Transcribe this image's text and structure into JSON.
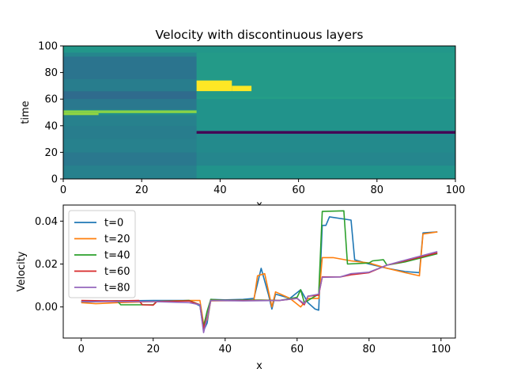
{
  "chart_data": [
    {
      "type": "heatmap",
      "title": "Velocity with discontinuous layers",
      "xlabel": "x",
      "ylabel": "time",
      "xlim": [
        0,
        100
      ],
      "ylim": [
        0,
        100
      ],
      "xticks": [
        "0",
        "20",
        "40",
        "60",
        "80",
        "100"
      ],
      "yticks": [
        "0",
        "20",
        "40",
        "60",
        "80",
        "100"
      ],
      "colormap": "viridis",
      "color_range": [
        -0.012,
        0.045
      ],
      "regions": [
        {
          "x": [
            0,
            100
          ],
          "t": [
            0,
            100
          ],
          "value": 0.016
        },
        {
          "x": [
            0,
            34
          ],
          "t": [
            0,
            10
          ],
          "value": 0.013
        },
        {
          "x": [
            0,
            34
          ],
          "t": [
            10,
            20
          ],
          "value": 0.011
        },
        {
          "x": [
            0,
            34
          ],
          "t": [
            20,
            30
          ],
          "value": 0.013
        },
        {
          "x": [
            0,
            34
          ],
          "t": [
            30,
            40
          ],
          "value": 0.012
        },
        {
          "x": [
            0,
            34
          ],
          "t": [
            40,
            48
          ],
          "value": 0.013
        },
        {
          "x": [
            0,
            34
          ],
          "t": [
            52,
            60
          ],
          "value": 0.011
        },
        {
          "x": [
            0,
            34
          ],
          "t": [
            60,
            66
          ],
          "value": 0.008
        },
        {
          "x": [
            0,
            34
          ],
          "t": [
            66,
            75
          ],
          "value": 0.012
        },
        {
          "x": [
            0,
            34
          ],
          "t": [
            75,
            92
          ],
          "value": 0.01
        },
        {
          "x": [
            0,
            34
          ],
          "t": [
            92,
            95
          ],
          "value": 0.014
        },
        {
          "x": [
            34,
            100
          ],
          "t": [
            0,
            10
          ],
          "value": 0.017
        },
        {
          "x": [
            34,
            100
          ],
          "t": [
            10,
            20
          ],
          "value": 0.014
        },
        {
          "x": [
            34,
            100
          ],
          "t": [
            20,
            34
          ],
          "value": 0.015
        },
        {
          "x": [
            34,
            100
          ],
          "t": [
            36,
            60
          ],
          "value": 0.017
        },
        {
          "x": [
            34,
            100
          ],
          "t": [
            60,
            62
          ],
          "value": 0.02
        },
        {
          "x": [
            34,
            100
          ],
          "t": [
            62,
            95
          ],
          "value": 0.019
        },
        {
          "x": [
            0,
            34
          ],
          "t": [
            49.5,
            51.5
          ],
          "value": 0.035
        },
        {
          "x": [
            0,
            9
          ],
          "t": [
            48,
            49.5
          ],
          "value": 0.036
        },
        {
          "x": [
            34,
            100
          ],
          "t": [
            34,
            36
          ],
          "value": -0.012
        },
        {
          "x": [
            34,
            43
          ],
          "t": [
            66,
            74
          ],
          "value": 0.045
        },
        {
          "x": [
            43,
            48
          ],
          "t": [
            66,
            70
          ],
          "value": 0.045
        },
        {
          "x": [
            0,
            100
          ],
          "t": [
            95,
            100
          ],
          "value": 0.018
        }
      ]
    },
    {
      "type": "line",
      "xlabel": "x",
      "ylabel": "Velocity",
      "xlim": [
        -5,
        104
      ],
      "ylim": [
        -0.0145,
        0.0475
      ],
      "xticks": [
        "0",
        "20",
        "40",
        "60",
        "80",
        "100"
      ],
      "yticks": [
        "0.00",
        "0.02",
        "0.04"
      ],
      "legend_location": "upper-left",
      "series": [
        {
          "name": "t=0",
          "color": "#1f77b4",
          "points": [
            [
              0,
              0.0022
            ],
            [
              10,
              0.0028
            ],
            [
              20,
              0.003
            ],
            [
              30,
              0.003
            ],
            [
              33,
              0.0005
            ],
            [
              34,
              -0.011
            ],
            [
              35,
              -0.0075
            ],
            [
              36,
              0.0035
            ],
            [
              40,
              0.0033
            ],
            [
              45,
              0.0035
            ],
            [
              48,
              0.004
            ],
            [
              50,
              0.018
            ],
            [
              52,
              0.006
            ],
            [
              53,
              -0.001
            ],
            [
              54,
              0.006
            ],
            [
              58,
              0.004
            ],
            [
              61,
              0.008
            ],
            [
              63,
              0.002
            ],
            [
              65,
              -0.001
            ],
            [
              66,
              -0.0015
            ],
            [
              67,
              0.038
            ],
            [
              68,
              0.038
            ],
            [
              69,
              0.042
            ],
            [
              75,
              0.0405
            ],
            [
              76,
              0.022
            ],
            [
              80,
              0.02
            ],
            [
              85,
              0.018
            ],
            [
              90,
              0.0165
            ],
            [
              94,
              0.016
            ],
            [
              95,
              0.0345
            ],
            [
              99,
              0.035
            ]
          ]
        },
        {
          "name": "t=20",
          "color": "#ff7f0e",
          "points": [
            [
              0,
              0.002
            ],
            [
              4,
              0.0015
            ],
            [
              10,
              0.002
            ],
            [
              20,
              0.0025
            ],
            [
              30,
              0.003
            ],
            [
              33,
              0.003
            ],
            [
              34,
              -0.008
            ],
            [
              35,
              -0.006
            ],
            [
              36,
              0.0028
            ],
            [
              45,
              0.003
            ],
            [
              48,
              0.0032
            ],
            [
              49,
              0.0145
            ],
            [
              51,
              0.0155
            ],
            [
              53,
              0.0
            ],
            [
              54,
              0.007
            ],
            [
              58,
              0.004
            ],
            [
              61,
              0.0
            ],
            [
              63,
              0.004
            ],
            [
              66,
              0.004
            ],
            [
              67,
              0.023
            ],
            [
              70,
              0.023
            ],
            [
              75,
              0.0215
            ],
            [
              80,
              0.0205
            ],
            [
              85,
              0.018
            ],
            [
              90,
              0.016
            ],
            [
              94,
              0.0145
            ],
            [
              95,
              0.034
            ],
            [
              99,
              0.035
            ]
          ]
        },
        {
          "name": "t=40",
          "color": "#2ca02c",
          "points": [
            [
              0,
              0.0025
            ],
            [
              10,
              0.0028
            ],
            [
              11,
              0.001
            ],
            [
              20,
              0.001
            ],
            [
              21,
              0.0025
            ],
            [
              30,
              0.003
            ],
            [
              33,
              0.001
            ],
            [
              34,
              -0.009
            ],
            [
              35,
              -0.002
            ],
            [
              36,
              0.0035
            ],
            [
              40,
              0.003
            ],
            [
              45,
              0.0032
            ],
            [
              50,
              0.0032
            ],
            [
              55,
              0.003
            ],
            [
              60,
              0.0045
            ],
            [
              61,
              0.008
            ],
            [
              62,
              0.002
            ],
            [
              66,
              0.006
            ],
            [
              67,
              0.0445
            ],
            [
              73,
              0.0448
            ],
            [
              74,
              0.02
            ],
            [
              80,
              0.0205
            ],
            [
              81,
              0.0215
            ],
            [
              84,
              0.022
            ],
            [
              85,
              0.0195
            ],
            [
              90,
              0.021
            ],
            [
              99,
              0.0248
            ]
          ]
        },
        {
          "name": "t=60",
          "color": "#d62728",
          "points": [
            [
              0,
              0.003
            ],
            [
              10,
              0.0028
            ],
            [
              16,
              0.003
            ],
            [
              17,
              0.001
            ],
            [
              20,
              0.0008
            ],
            [
              21,
              0.0025
            ],
            [
              30,
              0.0028
            ],
            [
              33,
              0.001
            ],
            [
              34,
              -0.01
            ],
            [
              35,
              -0.0045
            ],
            [
              36,
              0.003
            ],
            [
              45,
              0.003
            ],
            [
              55,
              0.003
            ],
            [
              60,
              0.004
            ],
            [
              62,
              0.001
            ],
            [
              63,
              0.005
            ],
            [
              66,
              0.0055
            ],
            [
              67,
              0.014
            ],
            [
              72,
              0.014
            ],
            [
              75,
              0.015
            ],
            [
              80,
              0.016
            ],
            [
              85,
              0.0195
            ],
            [
              90,
              0.0215
            ],
            [
              99,
              0.0252
            ]
          ]
        },
        {
          "name": "t=80",
          "color": "#9467bd",
          "points": [
            [
              0,
              0.0025
            ],
            [
              10,
              0.0025
            ],
            [
              20,
              0.0025
            ],
            [
              30,
              0.002
            ],
            [
              33,
              0.001
            ],
            [
              34,
              -0.012
            ],
            [
              35,
              -0.005
            ],
            [
              36,
              0.003
            ],
            [
              45,
              0.0028
            ],
            [
              55,
              0.003
            ],
            [
              60,
              0.004
            ],
            [
              62,
              0.0015
            ],
            [
              63,
              0.005
            ],
            [
              66,
              0.006
            ],
            [
              67,
              0.0138
            ],
            [
              72,
              0.014
            ],
            [
              75,
              0.0155
            ],
            [
              80,
              0.0162
            ],
            [
              85,
              0.0195
            ],
            [
              90,
              0.0218
            ],
            [
              99,
              0.0258
            ]
          ]
        }
      ]
    }
  ]
}
